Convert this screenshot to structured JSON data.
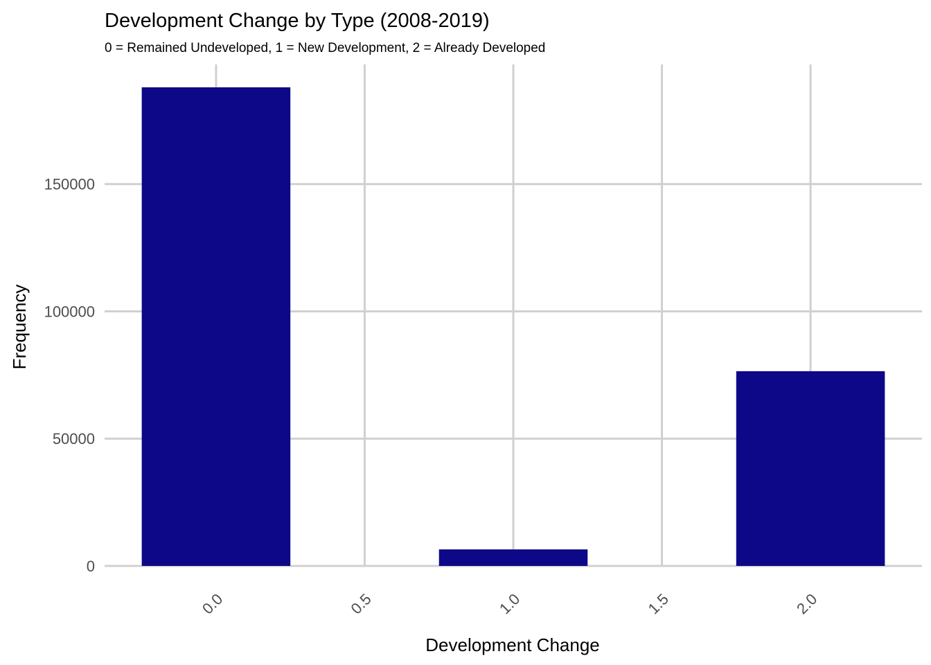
{
  "chart_data": {
    "type": "bar",
    "title": "Development Change by Type (2008-2019)",
    "subtitle": "0 = Remained Undeveloped, 1 = New Development, 2 = Already Developed",
    "xlabel": "Development Change",
    "ylabel": "Frequency",
    "x": [
      0,
      1,
      2
    ],
    "values": [
      188000,
      6500,
      76500
    ],
    "bar_width": 0.5,
    "xlim": [
      -0.375,
      2.375
    ],
    "ylim": [
      0,
      197000
    ],
    "x_ticks": [
      0.0,
      0.5,
      1.0,
      1.5,
      2.0
    ],
    "x_tick_labels": [
      "0.0",
      "0.5",
      "1.0",
      "1.5",
      "2.0"
    ],
    "y_ticks": [
      0,
      50000,
      100000,
      150000
    ],
    "y_tick_labels": [
      "0",
      "50000",
      "100000",
      "150000"
    ],
    "grid": true,
    "legend": "none",
    "colors": {
      "bar": "#0d0887",
      "grid": "#d0d0d0",
      "tick_text": "#4d4d4d",
      "text": "#000000"
    }
  }
}
